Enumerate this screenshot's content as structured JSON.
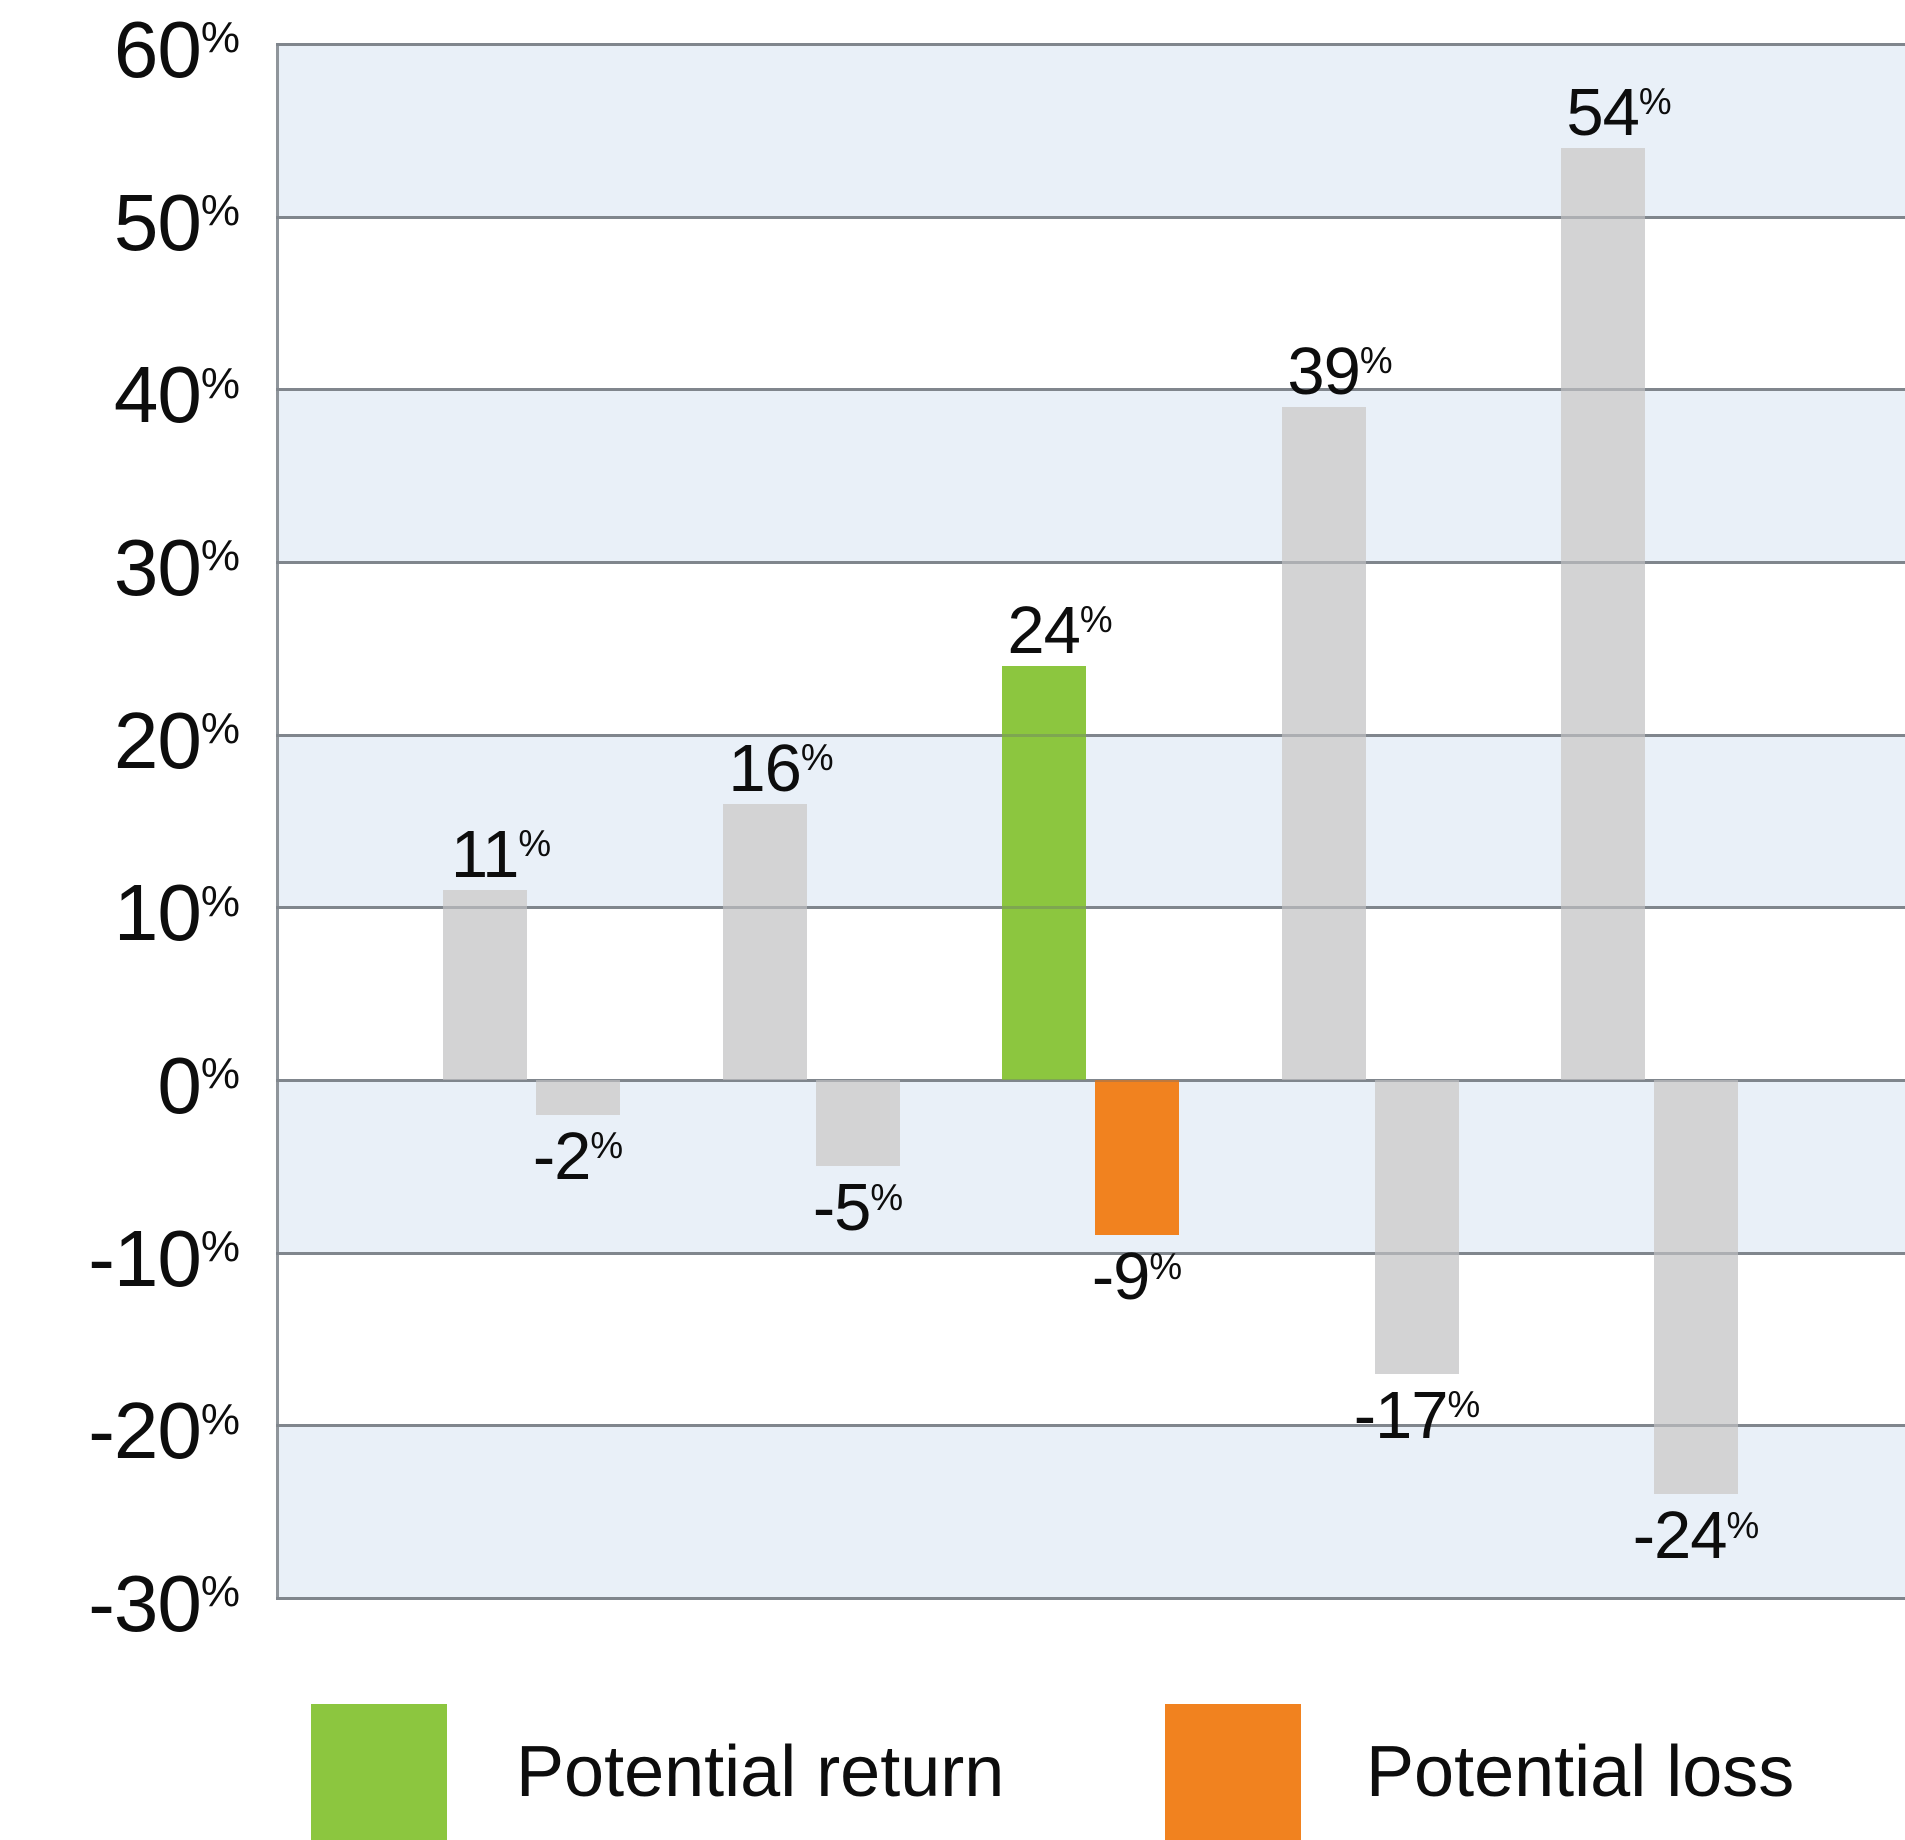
{
  "chart_data": {
    "type": "bar",
    "title": "",
    "y_axis": {
      "min": -30,
      "max": 60,
      "step": 10,
      "tick_suffix": "%",
      "tick_labels": [
        "60%",
        "50%",
        "40%",
        "30%",
        "20%",
        "10%",
        "0%",
        "-10%",
        "-20%",
        "-30%"
      ]
    },
    "ylim": [
      -30,
      60
    ],
    "grid": true,
    "legend_position": "bottom",
    "series": [
      {
        "name": "Potential return",
        "values": [
          11,
          16,
          24,
          39,
          54
        ],
        "data_labels": [
          "11%",
          "16%",
          "24%",
          "39%",
          "54%"
        ],
        "highlight_index": 2,
        "highlight_color": "#8CC63F",
        "default_color": "#D3D3D4"
      },
      {
        "name": "Potential loss",
        "values": [
          -2,
          -5,
          -9,
          -17,
          -24
        ],
        "data_labels": [
          "-2%",
          "-5%",
          "-9%",
          "-17%",
          "-24%"
        ],
        "highlight_index": 2,
        "highlight_color": "#F1821F",
        "default_color": "#D3D3D4"
      }
    ],
    "legend": [
      {
        "label": "Potential return",
        "color": "#8CC63F"
      },
      {
        "label": "Potential loss",
        "color": "#F1821F"
      }
    ]
  },
  "colors": {
    "stripe_band": "#E9F0F8",
    "plain_band": "#FFFFFF",
    "grid_line": "#8F959B",
    "axis_line": "#8F959B",
    "bar_gray": "#D3D3D4",
    "return_green": "#8CC63F",
    "loss_orange": "#F1821F",
    "text": "#0D0D0D"
  }
}
